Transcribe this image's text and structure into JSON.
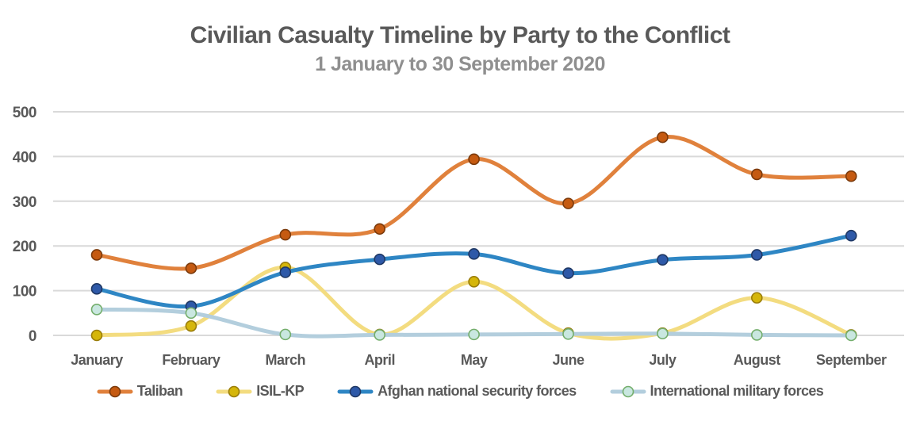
{
  "title": "Civilian Casualty Timeline by Party to the Conflict",
  "subtitle": "1 January to 30 September 2020",
  "colors": {
    "background": "#ffffff",
    "gridline": "#d9d9d9",
    "axis_text": "#595959",
    "title_text": "#595959",
    "subtitle_text": "#8f8f8f"
  },
  "chart_data": {
    "type": "line",
    "title": "Civilian Casualty Timeline by Party to the Conflict",
    "subtitle": "1 January to 30 September 2020",
    "categories": [
      "January",
      "February",
      "March",
      "April",
      "May",
      "June",
      "July",
      "August",
      "September"
    ],
    "series": [
      {
        "name": "Taliban",
        "values": [
          180,
          150,
          225,
          238,
          394,
          295,
          443,
          360,
          356
        ],
        "line_color": "#e0813c",
        "marker_fill": "#c55a11",
        "marker_stroke": "#7b3a0b"
      },
      {
        "name": "ISIL-KP",
        "values": [
          0,
          21,
          152,
          2,
          120,
          5,
          5,
          84,
          1
        ],
        "line_color": "#f3dc80",
        "marker_fill": "#d5b60a",
        "marker_stroke": "#9a7d0a"
      },
      {
        "name": "Afghan national security forces",
        "values": [
          104,
          65,
          141,
          170,
          182,
          139,
          169,
          180,
          223
        ],
        "line_color": "#2e86c4",
        "marker_fill": "#2e59a8",
        "marker_stroke": "#1f3864"
      },
      {
        "name": "International military forces",
        "values": [
          58,
          50,
          2,
          1,
          2,
          3,
          4,
          1,
          0
        ],
        "line_color": "#b3cedd",
        "marker_fill": "#c9e7e0",
        "marker_stroke": "#74ae6c"
      }
    ],
    "ylim": [
      0,
      500
    ],
    "yticks": [
      0,
      100,
      200,
      300,
      400,
      500
    ],
    "grid": true,
    "legend_position": "bottom"
  }
}
